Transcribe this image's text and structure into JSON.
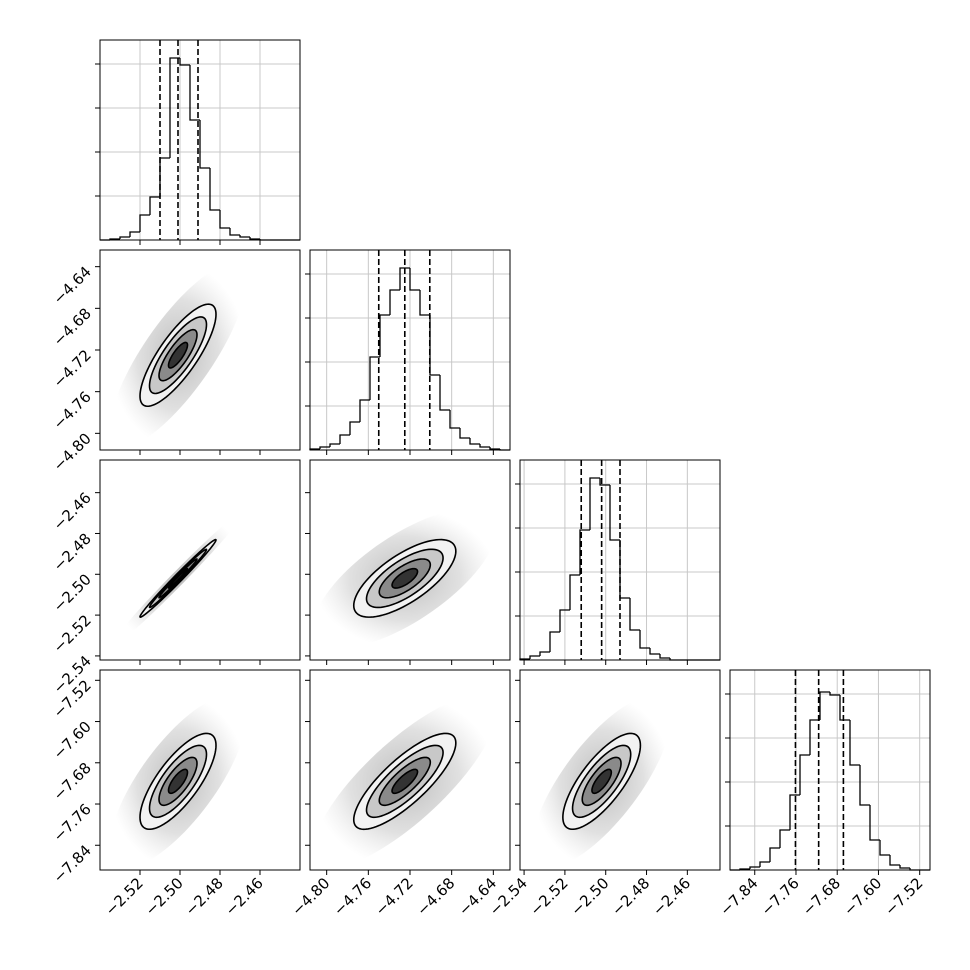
{
  "chart_data": {
    "type": "corner",
    "parameters": [
      {
        "xlim": [
          -2.54,
          -2.44
        ],
        "ticks": [
          {
            "value": -2.52,
            "label": "−2.52"
          },
          {
            "value": -2.5,
            "label": "−2.50"
          },
          {
            "value": -2.48,
            "label": "−2.48"
          },
          {
            "value": -2.46,
            "label": "−2.46"
          }
        ],
        "quantiles": [
          -2.51,
          -2.501,
          -2.491
        ],
        "bins": [
          -2.54,
          -2.535,
          -2.53,
          -2.525,
          -2.52,
          -2.515,
          -2.51,
          -2.505,
          -2.5,
          -2.495,
          -2.49,
          -2.485,
          -2.48,
          -2.475,
          -2.47,
          -2.465,
          -2.46,
          -2.455,
          -2.45,
          -2.445,
          -2.44
        ],
        "counts": [
          0,
          1,
          3,
          8,
          25,
          43,
          82,
          182,
          175,
          120,
          72,
          30,
          12,
          5,
          3,
          1,
          0,
          0,
          0,
          0
        ]
      },
      {
        "xlim": [
          -4.816,
          -4.624
        ],
        "ticks": [
          {
            "value": -4.8,
            "label": "−4.80"
          },
          {
            "value": -4.76,
            "label": "−4.76"
          },
          {
            "value": -4.72,
            "label": "−4.72"
          },
          {
            "value": -4.68,
            "label": "−4.68"
          },
          {
            "value": -4.64,
            "label": "−4.64"
          }
        ],
        "quantiles": [
          -4.75,
          -4.725,
          -4.701
        ],
        "bins": [
          -4.816,
          -4.8064,
          -4.7968,
          -4.7872,
          -4.7776,
          -4.768,
          -4.7584,
          -4.7488,
          -4.7392,
          -4.7296,
          -4.72,
          -4.7104,
          -4.7008,
          -4.6912,
          -4.6816,
          -4.672,
          -4.6624,
          -4.6528,
          -4.6432,
          -4.6336,
          -4.624
        ],
        "counts": [
          1,
          3,
          6,
          15,
          28,
          50,
          93,
          135,
          160,
          182,
          160,
          135,
          75,
          40,
          22,
          12,
          6,
          3,
          1,
          0
        ]
      },
      {
        "xlim": [
          -2.542,
          -2.444
        ],
        "ticks": [
          {
            "value": -2.54,
            "label": "−2.54"
          },
          {
            "value": -2.52,
            "label": "−2.52"
          },
          {
            "value": -2.5,
            "label": "−2.50"
          },
          {
            "value": -2.48,
            "label": "−2.48"
          },
          {
            "value": -2.46,
            "label": "−2.46"
          }
        ],
        "quantiles": [
          -2.512,
          -2.502,
          -2.493
        ],
        "bins": [
          -2.542,
          -2.5371,
          -2.5322,
          -2.5273,
          -2.5224,
          -2.5175,
          -2.5126,
          -2.5077,
          -2.5028,
          -2.4979,
          -2.493,
          -2.4881,
          -2.4832,
          -2.4783,
          -2.4734,
          -2.4685,
          -2.4636,
          -2.4587,
          -2.4538,
          -2.4489,
          -2.444
        ],
        "counts": [
          1,
          4,
          8,
          28,
          50,
          85,
          130,
          182,
          175,
          120,
          62,
          30,
          12,
          6,
          2,
          0,
          0,
          0,
          0,
          0
        ]
      },
      {
        "xlim": [
          -7.888,
          -7.5
        ],
        "ticks": [
          {
            "value": -7.84,
            "label": "−7.84"
          },
          {
            "value": -7.76,
            "label": "−7.76"
          },
          {
            "value": -7.68,
            "label": "−7.68"
          },
          {
            "value": -7.6,
            "label": "−7.60"
          },
          {
            "value": -7.52,
            "label": "−7.52"
          }
        ],
        "quantiles": [
          -7.761,
          -7.716,
          -7.668
        ],
        "bins": [
          -7.888,
          -7.8686,
          -7.8492,
          -7.8298,
          -7.8104,
          -7.791,
          -7.7716,
          -7.7522,
          -7.7328,
          -7.7134,
          -7.694,
          -7.6746,
          -7.6552,
          -7.6358,
          -7.6164,
          -7.597,
          -7.5776,
          -7.5582,
          -7.5388,
          -7.5194,
          -7.5
        ],
        "counts": [
          0,
          1,
          3,
          8,
          22,
          40,
          75,
          115,
          150,
          178,
          175,
          150,
          105,
          65,
          30,
          15,
          5,
          2,
          0,
          0
        ]
      }
    ],
    "hist_ylim": [
      0,
      200
    ],
    "hist_yticks": [
      44,
      88,
      132,
      176
    ],
    "pairs": [
      {
        "x": 0,
        "y": 1,
        "correlation": 0.8
      },
      {
        "x": 0,
        "y": 2,
        "correlation": 0.99
      },
      {
        "x": 1,
        "y": 2,
        "correlation": 0.7
      },
      {
        "x": 0,
        "y": 3,
        "correlation": 0.75
      },
      {
        "x": 1,
        "y": 3,
        "correlation": 0.8
      },
      {
        "x": 2,
        "y": 3,
        "correlation": 0.75
      }
    ],
    "contour_levels": [
      2,
      1.5,
      1,
      0.5
    ],
    "contour_colors": [
      "#f2f2f2",
      "#c8c8c8",
      "#8a8a8a",
      "#333333"
    ],
    "grid": true
  }
}
